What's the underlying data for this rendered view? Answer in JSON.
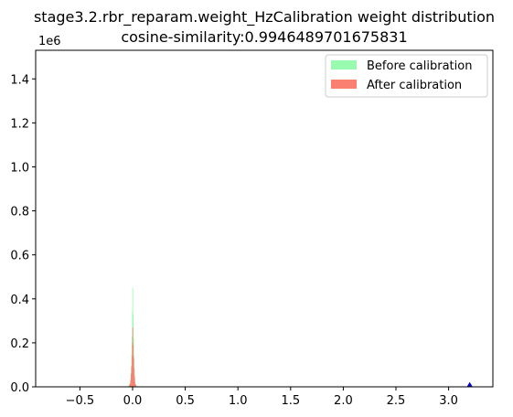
{
  "chart_data": {
    "type": "bar",
    "title": "stage3.2.rbr_reparam.weight_HzCalibration weight distribution",
    "subtitle": "cosine-similarity:0.9946489701675831",
    "xlabel": "",
    "ylabel": "",
    "y_scale_label": "1e6",
    "xlim": [
      -0.92,
      3.42
    ],
    "ylim": [
      0,
      1530000
    ],
    "x_ticks": [
      -0.5,
      0.0,
      0.5,
      1.0,
      1.5,
      2.0,
      2.5,
      3.0
    ],
    "x_tick_labels": [
      "−0.5",
      "0.0",
      "0.5",
      "1.0",
      "1.5",
      "2.0",
      "2.5",
      "3.0"
    ],
    "y_ticks": [
      0,
      200000,
      400000,
      600000,
      800000,
      1000000,
      1200000,
      1400000
    ],
    "y_tick_labels": [
      "0.0",
      "0.2",
      "0.4",
      "0.6",
      "0.8",
      "1.0",
      "1.2",
      "1.4"
    ],
    "grid": false,
    "legend_position": "top-right",
    "bin_width": 0.004,
    "series": [
      {
        "name": "Before calibration",
        "color": "#98fbb0",
        "bins": [
          [
            -0.05,
            2000
          ],
          [
            -0.04,
            6000
          ],
          [
            -0.03,
            15000
          ],
          [
            -0.02,
            40000
          ],
          [
            -0.014,
            90000
          ],
          [
            -0.01,
            150000
          ],
          [
            -0.006,
            230000
          ],
          [
            -0.002,
            350000
          ],
          [
            0.0,
            450000
          ],
          [
            0.004,
            330000
          ],
          [
            0.008,
            220000
          ],
          [
            0.012,
            140000
          ],
          [
            0.016,
            80000
          ],
          [
            0.02,
            40000
          ],
          [
            0.03,
            14000
          ],
          [
            0.04,
            5000
          ],
          [
            0.05,
            1500
          ]
        ]
      },
      {
        "name": "After calibration",
        "color": "#fa8072",
        "bins": [
          [
            -0.03,
            8000
          ],
          [
            -0.025,
            15000
          ],
          [
            -0.02,
            30000
          ],
          [
            -0.015,
            60000
          ],
          [
            -0.01,
            95000
          ],
          [
            -0.006,
            140000
          ],
          [
            -0.002,
            200000
          ],
          [
            0.0,
            270000
          ],
          [
            0.004,
            190000
          ],
          [
            0.008,
            130000
          ],
          [
            0.012,
            85000
          ],
          [
            0.016,
            50000
          ],
          [
            0.02,
            25000
          ],
          [
            0.025,
            12000
          ],
          [
            0.03,
            5000
          ]
        ]
      }
    ],
    "markers": [
      {
        "x": 3.2,
        "y": 5000,
        "color": "#0000cc"
      }
    ]
  }
}
